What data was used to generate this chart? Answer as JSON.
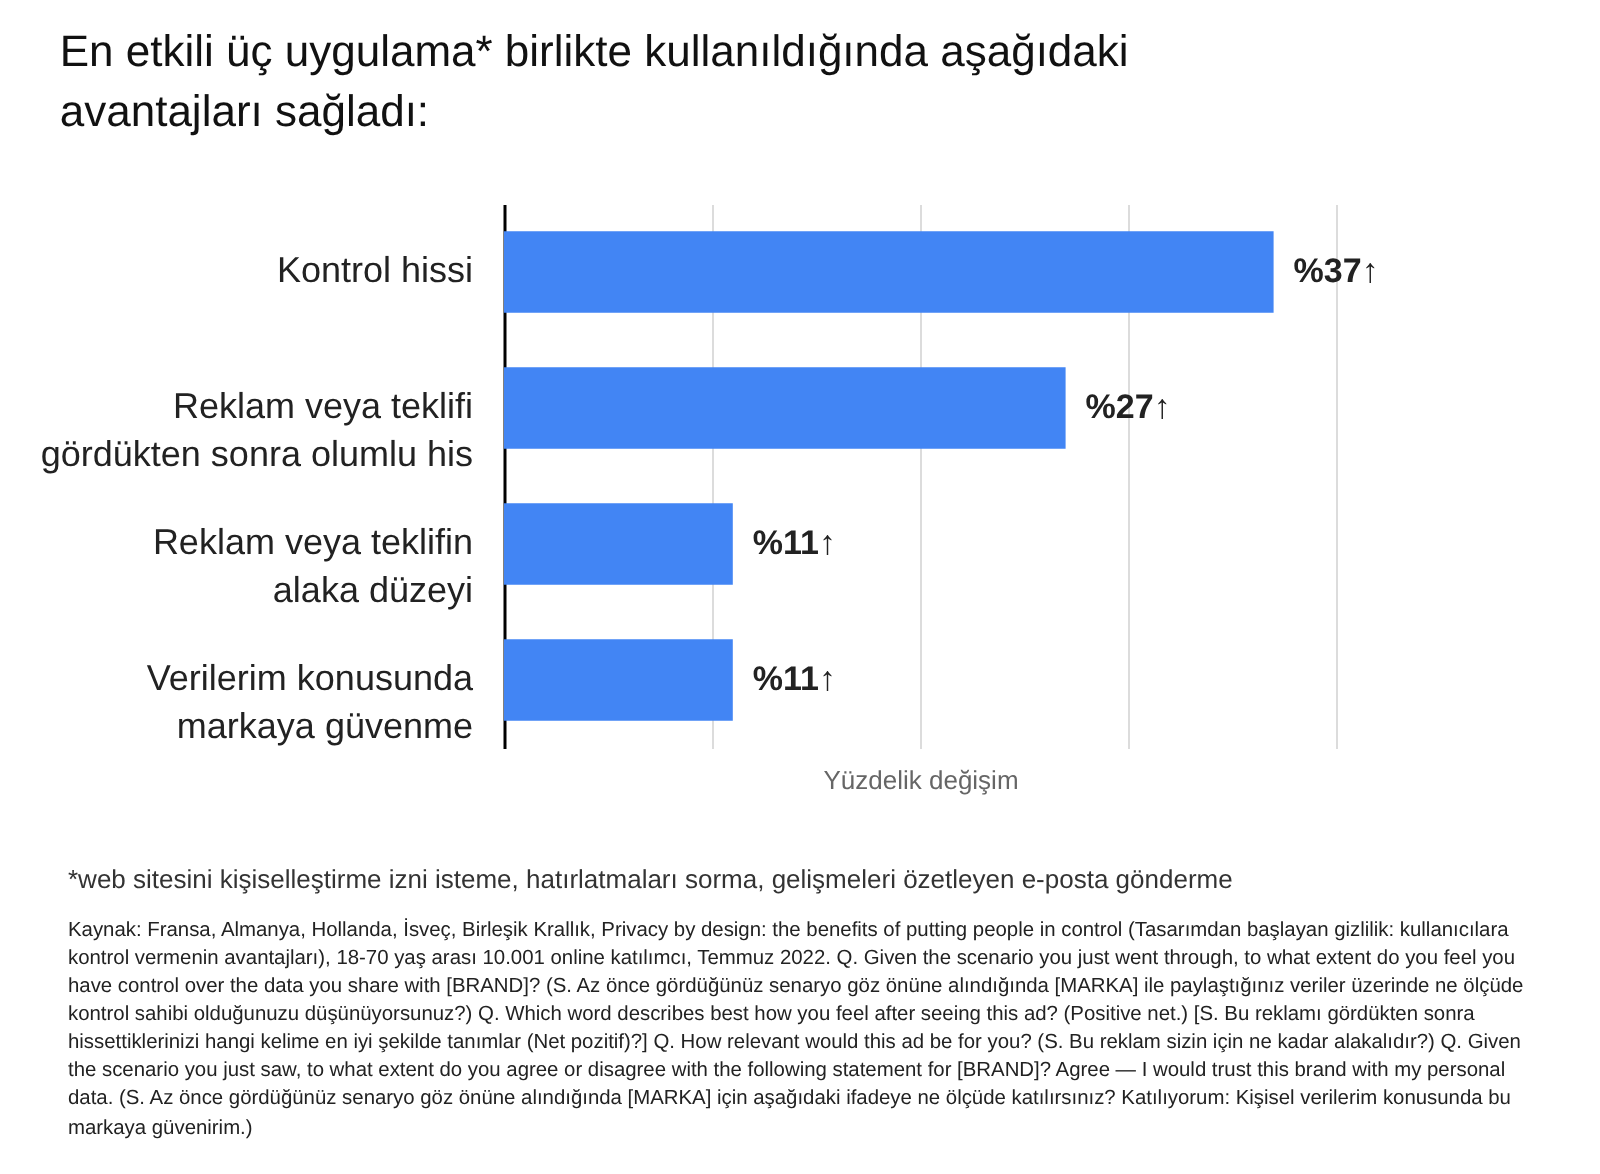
{
  "chart_data": {
    "type": "bar",
    "orientation": "horizontal",
    "title": "En etkili üç uygulama* birlikte kullanıldığında aşağıdaki avantajları sağladı:",
    "xlabel": "Yüzdelik değişim",
    "categories": [
      "Kontrol hissi",
      "Reklam veya teklifi gördükten sonra olumlu his",
      "Reklam veya teklifin alaka düzeyi",
      "Verilerim konusunda markaya güvenme"
    ],
    "values": [
      37,
      27,
      11,
      11
    ],
    "value_labels": [
      "%37↑",
      "%27↑",
      "%11↑",
      "%11↑"
    ],
    "color": "#4285f4",
    "xlim": [
      0,
      40
    ],
    "xticks": [
      {
        "value": 10,
        "label": null
      },
      {
        "value": 20,
        "label": null
      },
      {
        "value": 30,
        "label": null
      },
      {
        "value": 40,
        "label": null
      }
    ],
    "grid": "x",
    "tick_labels": "y",
    "annotations": [
      "*web sitesini kişiselleştirme izni isteme, hatırlatmaları sorma, gelişmeleri özetleyen e-posta gönderme",
      "Kaynak: Fransa, Almanya, Hollanda, İsveç, Birleşik Krallık, Privacy by design: the benefits of putting people in control (Tasarımdan başlayan gizlilik: kullanıcılara kontrol vermenin avantajları), 18-70 yaş arası 10.001 online katılımcı, Temmuz 2022. Q. Given the scenario you just went through, to what extent do you feel you have control over the data you share with [BRAND]? (S. Az önce gördüğünüz senaryo göz önüne alındığında [MARKA] ile paylaştığınız veriler üzerinde ne ölçüde kontrol sahibi olduğunuzu düşünüyorsunuz?) Q. Which word describes best how you feel after seeing this ad? (Positive net.) [S. Bu reklamı gördükten sonra hissettiklerinizi hangi kelime en iyi şekilde tanımlar (Net pozitif)?] Q. How relevant would this ad be for you? (S. Bu reklam sizin için ne kadar alakalıdır?) Q. Given the scenario you just saw, to what extent do you agree or disagree with the following statement for [BRAND]? Agree — I would trust this brand with my personal data. (S. Az önce gördüğünüz senaryo göz önüne alındığında [MARKA] için aşağıdaki ifadeye ne ölçüde katılırsınız? Katılıyorum: Kişisel verilerim konusunda bu markaya güvenirim.)"
    ]
  }
}
